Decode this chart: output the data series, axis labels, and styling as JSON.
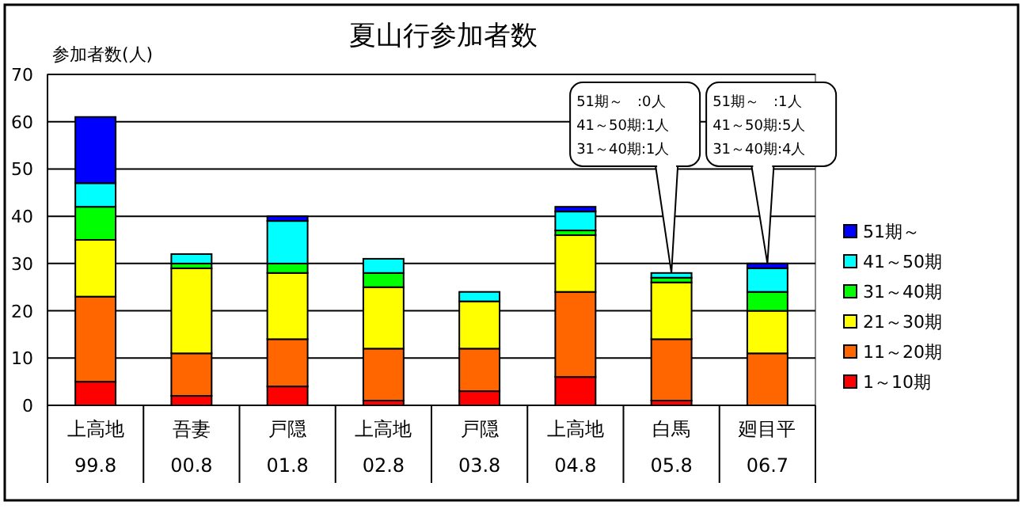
{
  "chart_data": {
    "type": "bar",
    "stacked": true,
    "title": "夏山行参加者数",
    "ylabel": "参加者数(人)",
    "categories": [
      "上高地\n99.8",
      "吾妻\n00.8",
      "戸隠\n01.8",
      "上高地\n02.8",
      "戸隠\n03.8",
      "上高地\n04.8",
      "白馬\n05.8",
      "廻目平\n06.7"
    ],
    "series": [
      {
        "name": "1～10期",
        "color": "#ff0000",
        "values": [
          5,
          2,
          4,
          1,
          3,
          6,
          1,
          0
        ]
      },
      {
        "name": "11～20期",
        "color": "#ff6600",
        "values": [
          18,
          9,
          10,
          11,
          9,
          18,
          13,
          11
        ]
      },
      {
        "name": "21～30期",
        "color": "#ffff00",
        "values": [
          12,
          18,
          14,
          13,
          10,
          12,
          12,
          9
        ]
      },
      {
        "name": "31～40期",
        "color": "#00ff00",
        "values": [
          7,
          1,
          2,
          3,
          0,
          1,
          1,
          4
        ]
      },
      {
        "name": "41～50期",
        "color": "#00ffff",
        "values": [
          5,
          2,
          9,
          3,
          2,
          4,
          1,
          5
        ]
      },
      {
        "name": "51期～",
        "color": "#0000ff",
        "values": [
          14,
          0,
          1,
          0,
          0,
          1,
          0,
          1
        ]
      }
    ],
    "ylim": [
      0,
      70
    ],
    "yticks": [
      0,
      10,
      20,
      30,
      40,
      50,
      60,
      70
    ],
    "grid": "y",
    "legend": "right",
    "annotations": [
      {
        "text": "51期～　:0人\n41～50期:1人\n31～40期:1人",
        "x": "白馬\n05.8",
        "y": 28
      },
      {
        "text": "51期～　:1人\n41～50期:5人\n31～40期:4人",
        "x": "廻目平\n06.7",
        "y": 30
      }
    ]
  }
}
